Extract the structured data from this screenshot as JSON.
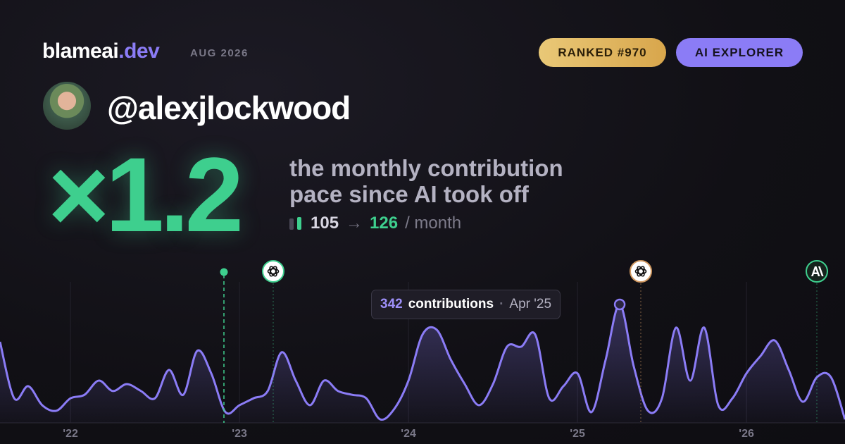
{
  "header": {
    "brand": "blameai",
    "brand_tld": ".dev",
    "date": "AUG 2026",
    "badges": [
      "RANKED #970",
      "AI EXPLORER"
    ]
  },
  "profile": {
    "handle": "@alexjlockwood"
  },
  "headline": {
    "multiplier": "×1.2",
    "description": [
      "the monthly contribution",
      "pace since AI took off"
    ],
    "before": 105,
    "arrow": "→",
    "after": 126,
    "unit": "/ month"
  },
  "chart_data": {
    "type": "area",
    "x": [
      2021.583,
      2021.667,
      2021.75,
      2021.833,
      2021.917,
      2022.0,
      2022.083,
      2022.167,
      2022.25,
      2022.333,
      2022.417,
      2022.5,
      2022.583,
      2022.667,
      2022.75,
      2022.833,
      2022.917,
      2023.0,
      2023.083,
      2023.167,
      2023.25,
      2023.333,
      2023.417,
      2023.5,
      2023.583,
      2023.667,
      2023.75,
      2023.833,
      2023.917,
      2024.0,
      2024.083,
      2024.167,
      2024.25,
      2024.333,
      2024.417,
      2024.5,
      2024.583,
      2024.667,
      2024.75,
      2024.833,
      2024.917,
      2025.0,
      2025.083,
      2025.167,
      2025.25,
      2025.333,
      2025.417,
      2025.5,
      2025.583,
      2025.667,
      2025.75,
      2025.833,
      2025.917,
      2026.0,
      2026.083,
      2026.167,
      2026.25,
      2026.333,
      2026.417,
      2026.5,
      2026.583
    ],
    "series": [
      {
        "name": "contributions",
        "color": "#8b7cf6",
        "values": [
          234,
          71,
          106,
          51,
          35,
          71,
          81,
          122,
          92,
          112,
          92,
          71,
          153,
          81,
          208,
          143,
          31,
          51,
          71,
          92,
          204,
          122,
          51,
          122,
          92,
          81,
          71,
          10,
          41,
          122,
          255,
          269,
          183,
          112,
          51,
          112,
          220,
          220,
          255,
          71,
          106,
          143,
          31,
          183,
          342,
          163,
          35,
          71,
          275,
          122,
          275,
          51,
          71,
          143,
          193,
          238,
          153,
          61,
          132,
          132,
          10
        ]
      }
    ],
    "xlim": [
      2021.583,
      2026.583
    ],
    "ylim": [
      0,
      400
    ],
    "xticks": [
      {
        "value": 2022,
        "label": "'22"
      },
      {
        "value": 2023,
        "label": "'23"
      },
      {
        "value": 2024,
        "label": "'24"
      },
      {
        "value": 2025,
        "label": "'25"
      },
      {
        "value": 2026,
        "label": "'26"
      }
    ],
    "tooltip": {
      "unit": "contributions",
      "separator": "·",
      "date": "Apr '25"
    }
  }
}
